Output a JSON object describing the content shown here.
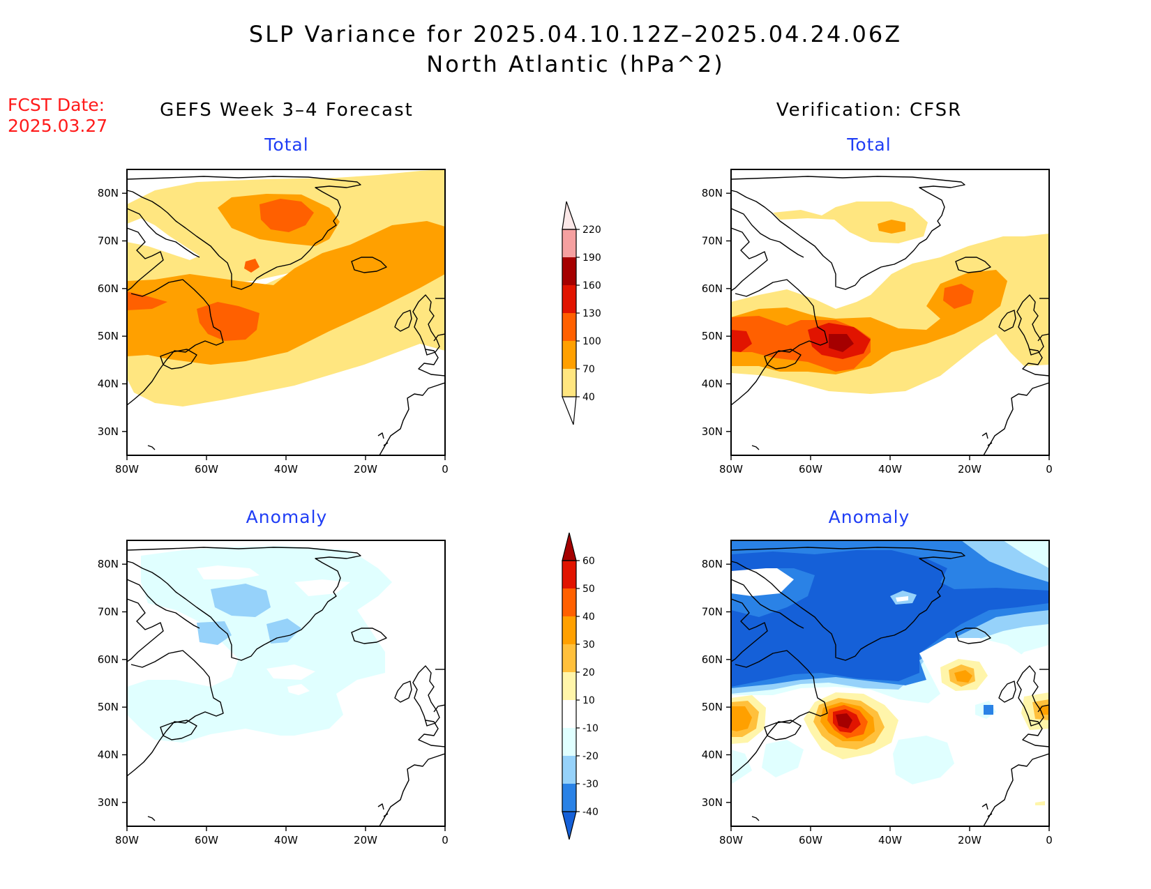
{
  "title_line1": "SLP Variance for 2025.04.10.12Z–2025.04.24.06Z",
  "title_line2": "North Atlantic (hPa^2)",
  "fcst_line1": "FCST Date:",
  "fcst_line2": "2025.03.27",
  "left_column_title": "GEFS Week 3–4 Forecast",
  "right_column_title": "Verification: CFSR",
  "panels": {
    "tl": {
      "subtitle": "Total"
    },
    "tr": {
      "subtitle": "Total"
    },
    "bl": {
      "subtitle": "Anomaly"
    },
    "br": {
      "subtitle": "Anomaly"
    }
  },
  "axes": {
    "lat_labels": [
      "80N",
      "70N",
      "60N",
      "50N",
      "40N",
      "30N"
    ],
    "lon_labels": [
      "80W",
      "60W",
      "40W",
      "20W",
      "0"
    ]
  },
  "colorbar_total": {
    "levels": [
      "40",
      "70",
      "100",
      "130",
      "160",
      "190",
      "220"
    ],
    "colors": [
      "#ffe680",
      "#ffa000",
      "#ff6000",
      "#e11400",
      "#a50000",
      "#f5a0a0",
      "#fce8e8"
    ]
  },
  "colorbar_anomaly": {
    "levels": [
      "-40",
      "-30",
      "-20",
      "-10",
      "10",
      "20",
      "30",
      "40",
      "50",
      "60"
    ],
    "colors": [
      "#1560d8",
      "#2a82e6",
      "#96d2fa",
      "#e0ffff",
      "#ffffff",
      "#fff5aa",
      "#ffc03c",
      "#ffa000",
      "#ff6000",
      "#e11400",
      "#a50000"
    ]
  },
  "chart_data": [
    {
      "type": "heatmap",
      "panel": "GEFS Week 3–4 Forecast",
      "title": "Total",
      "xlim": [
        "80W",
        "0"
      ],
      "ylim": [
        "25N",
        "85N"
      ]
    },
    {
      "type": "heatmap",
      "panel": "Verification: CFSR",
      "title": "Total",
      "xlim": [
        "80W",
        "0"
      ],
      "ylim": [
        "25N",
        "85N"
      ]
    },
    {
      "type": "heatmap",
      "panel": "GEFS Week 3–4 Forecast",
      "title": "Anomaly",
      "xlim": [
        "80W",
        "0"
      ],
      "ylim": [
        "25N",
        "85N"
      ]
    },
    {
      "type": "heatmap",
      "panel": "Verification: CFSR",
      "title": "Anomaly",
      "xlim": [
        "80W",
        "0"
      ],
      "ylim": [
        "25N",
        "85N"
      ]
    }
  ]
}
